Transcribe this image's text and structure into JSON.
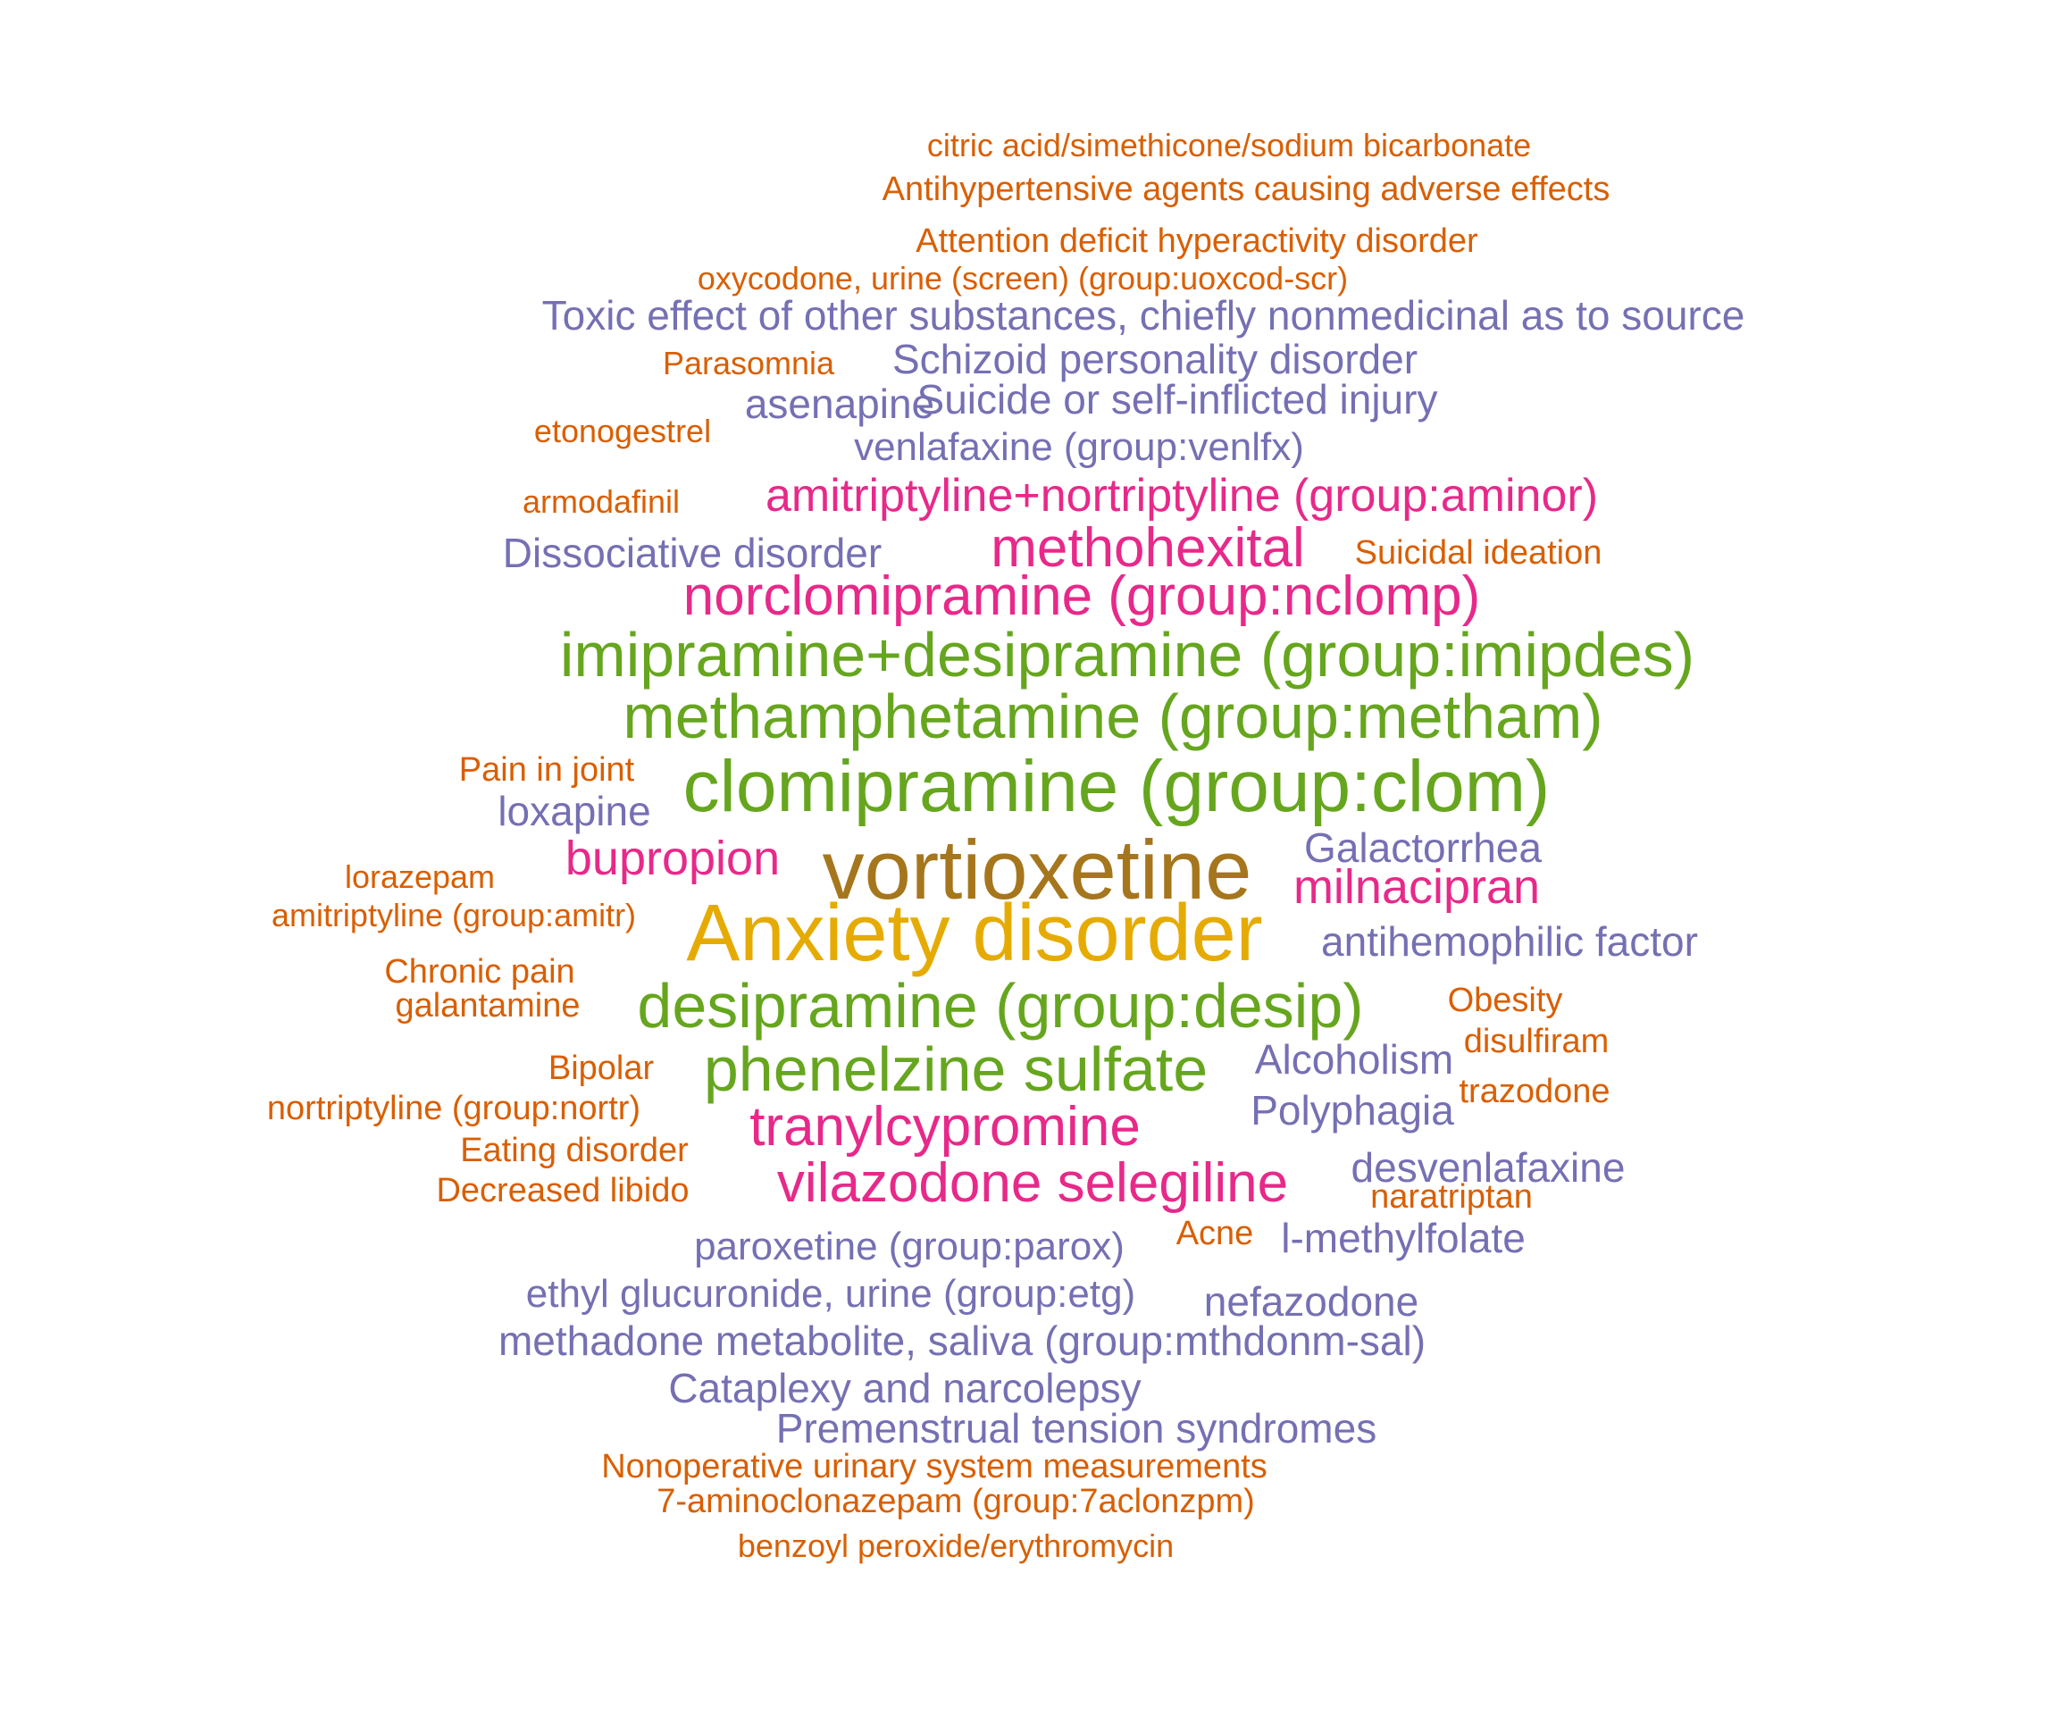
{
  "colors": {
    "orange": "#d95f02",
    "purple": "#7570b3",
    "magenta": "#e7298a",
    "green": "#66a61e",
    "gold": "#e6ab02",
    "brown": "#a6761d"
  },
  "words": [
    "citric acid/simethicone/sodium bicarbonate",
    "Antihypertensive agents causing adverse effects",
    "Attention deficit hyperactivity disorder",
    "oxycodone, urine (screen) (group:uoxcod-scr)",
    "Toxic effect of other substances, chiefly nonmedicinal as to source",
    "Parasomnia",
    "Schizoid personality disorder",
    "asenapine",
    "Suicide or self-inflicted injury",
    "etonogestrel",
    "venlafaxine (group:venlfx)",
    "armodafinil",
    "amitriptyline+nortriptyline (group:aminor)",
    "Dissociative disorder",
    "methohexital",
    "Suicidal ideation",
    "norclomipramine (group:nclomp)",
    "imipramine+desipramine (group:imipdes)",
    "methamphetamine (group:metham)",
    "Pain in joint",
    "clomipramine (group:clom)",
    "loxapine",
    "Galactorrhea",
    "bupropion",
    "vortioxetine",
    "lorazepam",
    "milnacipran",
    "amitriptyline (group:amitr)",
    "Anxiety disorder",
    "antihemophilic factor",
    "Chronic pain",
    "galantamine",
    "desipramine (group:desip)",
    "Obesity",
    "disulfiram",
    "Bipolar",
    "phenelzine sulfate",
    "Alcoholism",
    "nortriptyline (group:nortr)",
    "trazodone",
    "Polyphagia",
    "tranylcypromine",
    "Eating disorder",
    "desvenlafaxine",
    "vilazodone selegiline",
    "Decreased libido",
    "naratriptan",
    "Acne",
    "l-methylfolate",
    "paroxetine (group:parox)",
    "ethyl glucuronide, urine (group:etg)",
    "nefazodone",
    "methadone metabolite, saliva (group:mthdonm-sal)",
    "Cataplexy and narcolepsy",
    "Premenstrual tension syndromes",
    "Nonoperative urinary system measurements",
    "7-aminoclonazepam (group:7aclonzpm)",
    "benzoyl peroxide/erythromycin"
  ]
}
